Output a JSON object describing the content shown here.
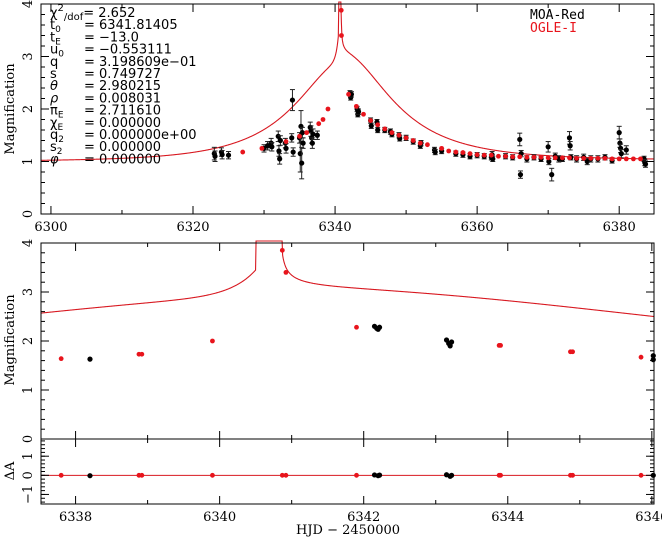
{
  "chart_data": [
    {
      "id": "full",
      "type": "scatter",
      "title": "",
      "xlabel": "",
      "ylabel": "Magnification",
      "xlim": [
        6298.6,
        6384.9
      ],
      "ylim": [
        0,
        4
      ],
      "xticks": [
        6300,
        6320,
        6340,
        6360,
        6380
      ],
      "xticks_minor": [
        6310,
        6330,
        6350,
        6370
      ],
      "yticks": [
        0,
        1,
        2,
        3,
        4
      ],
      "grid": false,
      "legend": {
        "placement": "top-right",
        "entries": [
          {
            "label": "MOA-Red",
            "color": "#000000"
          },
          {
            "label": "OGLE-I",
            "color": "#e8141c"
          }
        ]
      },
      "parameters": [
        {
          "name": "χ²/dof",
          "value": "2.652"
        },
        {
          "name": "t0",
          "value": "6341.81405"
        },
        {
          "name": "tE",
          "value": "−13.0"
        },
        {
          "name": "u0",
          "value": "−0.553111"
        },
        {
          "name": "q",
          "value": "3.198609e−01"
        },
        {
          "name": "s",
          "value": "0.749727"
        },
        {
          "name": "θ",
          "value": "2.980215"
        },
        {
          "name": "ρ",
          "value": "0.008031"
        },
        {
          "name": "πE",
          "value": "2.711610"
        },
        {
          "name": "χE",
          "value": "0.000000"
        },
        {
          "name": "q2",
          "value": "0.000000e+00"
        },
        {
          "name": "s2",
          "value": "0.000000"
        },
        {
          "name": "φ",
          "value": "0.000000"
        }
      ],
      "series": [
        {
          "name": "MOA-Red",
          "color": "#000000",
          "points": [
            [
              6323.0,
              1.15,
              0.12
            ],
            [
              6323.1,
              1.1,
              0.1
            ],
            [
              6324.0,
              1.18,
              0.08
            ],
            [
              6324.1,
              1.13,
              0.08
            ],
            [
              6325.0,
              1.12,
              0.07
            ],
            [
              6330.0,
              1.25,
              0.07
            ],
            [
              6330.5,
              1.3,
              0.08
            ],
            [
              6331.0,
              1.35,
              0.09
            ],
            [
              6331.1,
              1.28,
              0.08
            ],
            [
              6332.0,
              1.48,
              0.1
            ],
            [
              6332.1,
              1.2,
              0.1
            ],
            [
              6332.2,
              1.05,
              0.1
            ],
            [
              6332.3,
              1.4,
              0.09
            ],
            [
              6333.0,
              1.35,
              0.09
            ],
            [
              6333.1,
              1.25,
              0.09
            ],
            [
              6333.9,
              1.45,
              0.08
            ],
            [
              6334.0,
              2.17,
              0.2
            ],
            [
              6334.1,
              1.18,
              0.08
            ],
            [
              6335.0,
              1.45,
              0.1
            ],
            [
              6335.1,
              1.15,
              0.35
            ],
            [
              6335.2,
              1.67,
              0.3
            ],
            [
              6335.3,
              0.97,
              0.3
            ],
            [
              6335.4,
              1.55,
              0.1
            ],
            [
              6335.5,
              1.35,
              0.1
            ],
            [
              6336.5,
              1.65,
              0.1
            ],
            [
              6336.6,
              1.58,
              0.1
            ],
            [
              6336.7,
              1.45,
              0.1
            ],
            [
              6336.8,
              1.35,
              0.1
            ],
            [
              6336.9,
              1.52,
              0.1
            ],
            [
              6337.5,
              1.5,
              0.08
            ],
            [
              6342.1,
              2.3,
              0.05
            ],
            [
              6342.2,
              2.22,
              0.05
            ],
            [
              6342.3,
              2.28,
              0.05
            ],
            [
              6343.1,
              2.0,
              0.05
            ],
            [
              6343.2,
              1.9,
              0.05
            ],
            [
              6343.3,
              1.95,
              0.05
            ],
            [
              6345.0,
              1.78,
              0.05
            ],
            [
              6345.1,
              1.68,
              0.05
            ],
            [
              6345.9,
              1.75,
              0.05
            ],
            [
              6346.0,
              1.6,
              0.05
            ],
            [
              6347.0,
              1.6,
              0.05
            ],
            [
              6347.8,
              1.57,
              0.05
            ],
            [
              6348.0,
              1.52,
              0.05
            ],
            [
              6349.0,
              1.5,
              0.05
            ],
            [
              6349.1,
              1.44,
              0.05
            ],
            [
              6350.0,
              1.45,
              0.05
            ],
            [
              6351.0,
              1.38,
              0.05
            ],
            [
              6352.0,
              1.3,
              0.05
            ],
            [
              6352.1,
              1.35,
              0.05
            ],
            [
              6354.0,
              1.22,
              0.05
            ],
            [
              6354.1,
              1.18,
              0.05
            ],
            [
              6355.0,
              1.2,
              0.05
            ],
            [
              6357.0,
              1.15,
              0.05
            ],
            [
              6358.0,
              1.13,
              0.05
            ],
            [
              6359.0,
              1.1,
              0.05
            ],
            [
              6360.0,
              1.12,
              0.05
            ],
            [
              6361.0,
              1.1,
              0.05
            ],
            [
              6362.0,
              1.08,
              0.05
            ],
            [
              6362.1,
              1.13,
              0.06
            ],
            [
              6362.2,
              1.05,
              0.05
            ],
            [
              6364.0,
              1.1,
              0.05
            ],
            [
              6365.0,
              1.08,
              0.05
            ],
            [
              6366.0,
              1.42,
              0.12
            ],
            [
              6366.1,
              0.75,
              0.07
            ],
            [
              6366.2,
              1.15,
              0.06
            ],
            [
              6367.0,
              1.05,
              0.06
            ],
            [
              6368.0,
              1.08,
              0.05
            ],
            [
              6369.0,
              1.05,
              0.05
            ],
            [
              6370.0,
              1.28,
              0.1
            ],
            [
              6370.1,
              1.0,
              0.06
            ],
            [
              6370.5,
              0.75,
              0.12
            ],
            [
              6371.0,
              1.1,
              0.06
            ],
            [
              6371.5,
              1.05,
              0.06
            ],
            [
              6372.0,
              1.05,
              0.05
            ],
            [
              6373.0,
              1.45,
              0.12
            ],
            [
              6373.1,
              1.3,
              0.08
            ],
            [
              6373.2,
              1.08,
              0.05
            ],
            [
              6374.0,
              1.05,
              0.06
            ],
            [
              6375.0,
              1.08,
              0.06
            ],
            [
              6375.5,
              1.0,
              0.06
            ],
            [
              6376.0,
              1.05,
              0.06
            ],
            [
              6377.0,
              1.05,
              0.06
            ],
            [
              6378.0,
              1.08,
              0.05
            ],
            [
              6379.0,
              1.02,
              0.05
            ],
            [
              6380.0,
              1.55,
              0.12
            ],
            [
              6380.1,
              1.35,
              0.08
            ],
            [
              6380.2,
              1.25,
              0.08
            ],
            [
              6380.3,
              1.15,
              0.08
            ],
            [
              6381.0,
              1.22,
              0.08
            ],
            [
              6383.5,
              1.05,
              0.05
            ],
            [
              6383.6,
              0.98,
              0.06
            ],
            [
              6383.7,
              0.95,
              0.06
            ]
          ]
        },
        {
          "name": "OGLE-I",
          "color": "#e8141c",
          "points": [
            [
              6327.0,
              1.18
            ],
            [
              6329.7,
              1.25
            ],
            [
              6333.1,
              1.38
            ],
            [
              6335.0,
              1.48
            ],
            [
              6336.0,
              1.55
            ],
            [
              6337.7,
              1.72
            ],
            [
              6338.3,
              1.8
            ],
            [
              6339.0,
              2.0
            ],
            [
              6340.87,
              3.88
            ],
            [
              6340.9,
              3.4
            ],
            [
              6341.9,
              2.28
            ],
            [
              6343.0,
              2.05
            ],
            [
              6344.0,
              1.9
            ],
            [
              6345.0,
              1.78
            ],
            [
              6346.0,
              1.7
            ],
            [
              6347.0,
              1.62
            ],
            [
              6348.0,
              1.55
            ],
            [
              6349.0,
              1.5
            ],
            [
              6350.0,
              1.45
            ],
            [
              6351.0,
              1.4
            ],
            [
              6352.0,
              1.35
            ],
            [
              6353.0,
              1.32
            ],
            [
              6355.0,
              1.25
            ],
            [
              6356.0,
              1.2
            ],
            [
              6357.0,
              1.18
            ],
            [
              6358.0,
              1.17
            ],
            [
              6359.0,
              1.15
            ],
            [
              6360.0,
              1.13
            ],
            [
              6361.0,
              1.12
            ],
            [
              6362.0,
              1.12
            ],
            [
              6363.0,
              1.1
            ],
            [
              6364.0,
              1.1
            ],
            [
              6365.0,
              1.09
            ],
            [
              6366.0,
              1.09
            ],
            [
              6367.0,
              1.08
            ],
            [
              6368.0,
              1.08
            ],
            [
              6369.0,
              1.08
            ],
            [
              6370.0,
              1.07
            ],
            [
              6371.0,
              1.07
            ],
            [
              6372.0,
              1.07
            ],
            [
              6373.0,
              1.07
            ],
            [
              6374.0,
              1.06
            ],
            [
              6375.0,
              1.06
            ],
            [
              6376.0,
              1.06
            ],
            [
              6377.0,
              1.06
            ],
            [
              6378.0,
              1.06
            ],
            [
              6379.0,
              1.05
            ],
            [
              6380.0,
              1.05
            ],
            [
              6381.0,
              1.05
            ],
            [
              6382.0,
              1.05
            ],
            [
              6383.0,
              1.05
            ]
          ]
        }
      ]
    },
    {
      "id": "zoom",
      "type": "scatter",
      "title": "",
      "xlabel": "",
      "ylabel": "Magnification",
      "xlim": [
        6337.52,
        6346.03
      ],
      "ylim": [
        0,
        4
      ],
      "xticks": [
        6338,
        6340,
        6342,
        6344,
        6346
      ],
      "xticks_minor": [
        6339,
        6341,
        6343,
        6345
      ],
      "yticks": [
        0,
        1,
        2,
        3,
        4
      ],
      "grid": false,
      "series": [
        {
          "name": "MOA-Red",
          "color": "#000000",
          "points": [
            [
              6338.2,
              1.63
            ],
            [
              6342.15,
              2.3
            ],
            [
              6342.18,
              2.26
            ],
            [
              6342.2,
              2.24
            ],
            [
              6342.22,
              2.28
            ],
            [
              6343.15,
              2.02
            ],
            [
              6343.18,
              1.95
            ],
            [
              6343.2,
              1.9
            ],
            [
              6343.22,
              1.98
            ],
            [
              6346.02,
              1.7
            ],
            [
              6346.02,
              1.62
            ]
          ]
        },
        {
          "name": "OGLE-I",
          "color": "#e8141c",
          "points": [
            [
              6337.8,
              1.64
            ],
            [
              6338.88,
              1.73
            ],
            [
              6338.92,
              1.73
            ],
            [
              6339.9,
              2.0
            ],
            [
              6340.87,
              3.85
            ],
            [
              6340.92,
              3.4
            ],
            [
              6341.9,
              2.28
            ],
            [
              6343.88,
              1.91
            ],
            [
              6343.9,
              1.91
            ],
            [
              6344.87,
              1.78
            ],
            [
              6344.9,
              1.78
            ],
            [
              6345.85,
              1.67
            ]
          ]
        }
      ]
    },
    {
      "id": "residuals",
      "type": "scatter",
      "title": "",
      "xlabel": "HJD − 2450000",
      "ylabel": "ΔA",
      "xlim": [
        6337.52,
        6346.03
      ],
      "ylim": [
        -1.5,
        1.9
      ],
      "xticks": [
        6338,
        6340,
        6342,
        6344,
        6346
      ],
      "xticks_minor": [
        6339,
        6341,
        6343,
        6345
      ],
      "yticks": [
        -1,
        0,
        1
      ],
      "grid": false,
      "series": [
        {
          "name": "MOA-Red",
          "color": "#000000",
          "points": [
            [
              6338.2,
              -0.02
            ],
            [
              6342.15,
              0.02
            ],
            [
              6342.2,
              -0.02
            ],
            [
              6342.22,
              0.01
            ],
            [
              6343.15,
              0.03
            ],
            [
              6343.2,
              -0.05
            ],
            [
              6343.22,
              0.0
            ],
            [
              6346.02,
              0.0
            ]
          ]
        },
        {
          "name": "OGLE-I",
          "color": "#e8141c",
          "points": [
            [
              6337.8,
              0.0
            ],
            [
              6338.88,
              0.0
            ],
            [
              6338.92,
              0.0
            ],
            [
              6339.9,
              0.0
            ],
            [
              6340.87,
              0.0
            ],
            [
              6340.92,
              0.0
            ],
            [
              6341.9,
              0.0
            ],
            [
              6343.88,
              0.0
            ],
            [
              6343.9,
              0.0
            ],
            [
              6344.87,
              0.0
            ],
            [
              6344.9,
              0.0
            ],
            [
              6345.85,
              0.0
            ]
          ]
        }
      ]
    }
  ],
  "model": {
    "name": "binary-lens model",
    "color": "#d81820",
    "caustic_entry": 6340.5,
    "caustic_exit": 6340.85
  }
}
